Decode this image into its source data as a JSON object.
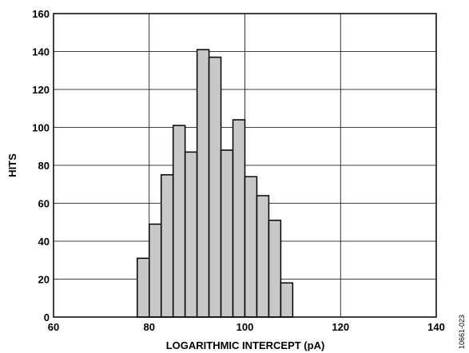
{
  "chart_data": {
    "type": "bar",
    "title": "",
    "xlabel": "LOGARITHMIC INTERCEPT (pA)",
    "ylabel": "HITS",
    "xlim": [
      60,
      140
    ],
    "ylim": [
      0,
      160
    ],
    "xticks": [
      60,
      80,
      100,
      120,
      140
    ],
    "yticks": [
      0,
      20,
      40,
      60,
      80,
      100,
      120,
      140,
      160
    ],
    "grid": true,
    "bin_width": 2.5,
    "bins": [
      {
        "start": 77.5,
        "value": 31
      },
      {
        "start": 80.0,
        "value": 49
      },
      {
        "start": 82.5,
        "value": 75
      },
      {
        "start": 85.0,
        "value": 101
      },
      {
        "start": 87.5,
        "value": 87
      },
      {
        "start": 90.0,
        "value": 141
      },
      {
        "start": 92.5,
        "value": 137
      },
      {
        "start": 95.0,
        "value": 88
      },
      {
        "start": 97.5,
        "value": 104
      },
      {
        "start": 100.0,
        "value": 74
      },
      {
        "start": 102.5,
        "value": 64
      },
      {
        "start": 105.0,
        "value": 51
      },
      {
        "start": 107.5,
        "value": 18
      }
    ],
    "bar_color": "#c8c8c8",
    "edge_color": "#000000"
  },
  "figure_id": "10661-023"
}
